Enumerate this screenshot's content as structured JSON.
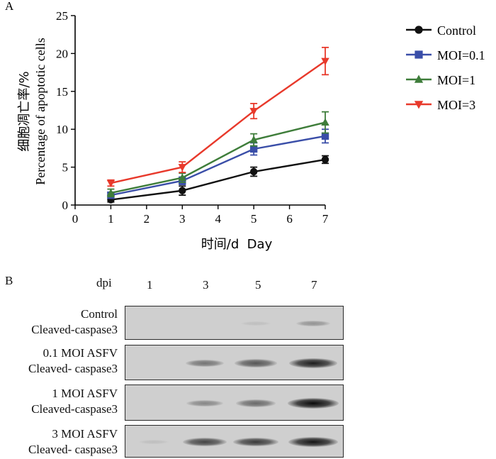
{
  "chart_data": {
    "type": "line",
    "panel_label": "A",
    "ylabel_cn": "细胞凋亡率/%",
    "ylabel_en": "Percentage of apoptotic cells",
    "xlabel": "时间/d  Day",
    "xlim": [
      0,
      7
    ],
    "ylim": [
      0,
      25
    ],
    "xticks": [
      0,
      1,
      2,
      3,
      4,
      5,
      6,
      7
    ],
    "yticks": [
      0,
      5,
      10,
      15,
      20,
      25
    ],
    "x": [
      1,
      3,
      5,
      7
    ],
    "series": [
      {
        "name": "Control",
        "color": "#111111",
        "marker": "circle",
        "values": [
          0.7,
          1.9,
          4.4,
          6.0
        ],
        "errors": [
          0.3,
          0.6,
          0.6,
          0.5
        ]
      },
      {
        "name": "MOI=0.1",
        "color": "#3a4ea8",
        "marker": "square",
        "values": [
          1.3,
          3.2,
          7.4,
          9.1
        ],
        "errors": [
          0.4,
          0.5,
          0.8,
          0.9
        ]
      },
      {
        "name": "MOI=1",
        "color": "#3e7d3a",
        "marker": "triangle-up",
        "values": [
          1.6,
          3.6,
          8.6,
          10.9
        ],
        "errors": [
          0.5,
          0.6,
          0.8,
          1.4
        ]
      },
      {
        "name": "MOI=3",
        "color": "#e8392b",
        "marker": "triangle-down",
        "values": [
          2.9,
          5.0,
          12.4,
          19.0
        ],
        "errors": [
          0.4,
          0.7,
          1.0,
          1.8
        ]
      }
    ]
  },
  "blot": {
    "panel_label": "B",
    "lane_header": "dpi",
    "lanes": [
      "1",
      "3",
      "5",
      "7"
    ],
    "rows": [
      {
        "line1": "Control",
        "line2": "Cleaved-caspase3",
        "intensity": [
          0.0,
          0.0,
          0.05,
          0.28
        ]
      },
      {
        "line1": "0.1 MOI ASFV",
        "line2": "Cleaved- caspase3",
        "intensity": [
          0.0,
          0.45,
          0.6,
          0.9
        ]
      },
      {
        "line1": "1 MOI ASFV",
        "line2": "Cleaved-caspase3",
        "intensity": [
          0.0,
          0.35,
          0.5,
          1.0
        ]
      },
      {
        "line1": "3 MOI ASFV",
        "line2": "Cleaved- caspase3",
        "intensity": [
          0.05,
          0.7,
          0.75,
          0.95
        ]
      }
    ]
  }
}
